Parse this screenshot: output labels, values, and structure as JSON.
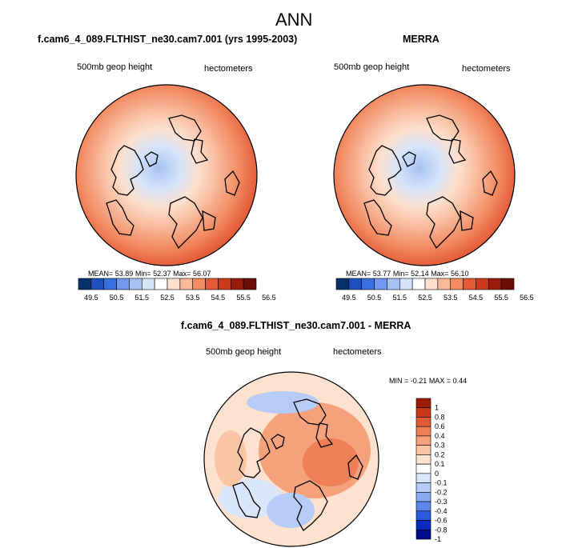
{
  "figure": {
    "title": "ANN",
    "diff_title": "f.cam6_4_089.FLTHIST_ne30.cam7.001 - MERRA"
  },
  "colors": {
    "abs_scale": [
      "#08306b",
      "#1f4fbf",
      "#3a6fe0",
      "#6f98ee",
      "#a6c1f3",
      "#d6e4fa",
      "#ffffff",
      "#fde0cd",
      "#f8b89a",
      "#f28c63",
      "#e45a37",
      "#c93b1c",
      "#9a1b0b",
      "#6d0e06"
    ],
    "diff_scale": [
      "#000a8a",
      "#0a2ac0",
      "#2e5ae0",
      "#5d86ea",
      "#8aaaf0",
      "#b6cbf6",
      "#dbe6fb",
      "#ffffff",
      "#fde2cf",
      "#fbc4a5",
      "#f5a27c",
      "#ee7f57",
      "#e05a36",
      "#c63a1a",
      "#9b1d08"
    ],
    "land_outline": "#000000"
  },
  "chart_data": [
    {
      "type": "heatmap",
      "projection": "polar-stereographic-north",
      "title": "f.cam6_4_089.FLTHIST_ne30.cam7.001 (yrs 1995-2003)",
      "left_label": "500mb geop height",
      "right_label": "hectometers",
      "stats": {
        "mean_label": "MEAN=",
        "mean": "53.89",
        "min_label": "Min=",
        "min": "52.37",
        "max_label": "Max=",
        "max": "56.07"
      },
      "colorbar": {
        "orientation": "horizontal",
        "levels": [
          "49.5",
          "50.5",
          "51.5",
          "52.5",
          "53.5",
          "54.5",
          "55.5",
          "56.5"
        ]
      }
    },
    {
      "type": "heatmap",
      "projection": "polar-stereographic-north",
      "title": "MERRA",
      "left_label": "500mb geop height",
      "right_label": "hectometers",
      "stats": {
        "mean_label": "MEAN=",
        "mean": "53.77",
        "min_label": "Min=",
        "min": "52.14",
        "max_label": "Max=",
        "max": "56.10"
      },
      "colorbar": {
        "orientation": "horizontal",
        "levels": [
          "49.5",
          "50.5",
          "51.5",
          "52.5",
          "53.5",
          "54.5",
          "55.5",
          "56.5"
        ]
      }
    },
    {
      "type": "heatmap",
      "projection": "polar-stereographic-north",
      "title": "f.cam6_4_089.FLTHIST_ne30.cam7.001 - MERRA",
      "left_label": "500mb geop height",
      "right_label": "hectometers",
      "stats": {
        "min_label": "MIN =",
        "min": "-0.21",
        "max_label": "MAX =",
        "max": "0.44"
      },
      "colorbar": {
        "orientation": "vertical",
        "levels": [
          "1",
          "0.8",
          "0.6",
          "0.4",
          "0.3",
          "0.2",
          "0.1",
          "0",
          "-0.1",
          "-0.2",
          "-0.3",
          "-0.4",
          "-0.6",
          "-0.8",
          "-1"
        ]
      }
    }
  ]
}
